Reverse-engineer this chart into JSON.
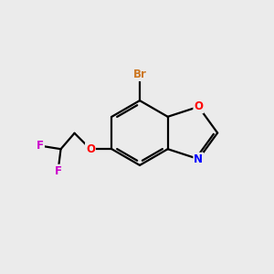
{
  "background_color": "#ebebeb",
  "bond_color": "#000000",
  "bond_width": 1.6,
  "atom_colors": {
    "Br": "#cc7722",
    "O": "#ff0000",
    "N": "#0000ff",
    "F": "#cc00cc",
    "C": "#000000"
  },
  "font_size_atom": 8.5
}
